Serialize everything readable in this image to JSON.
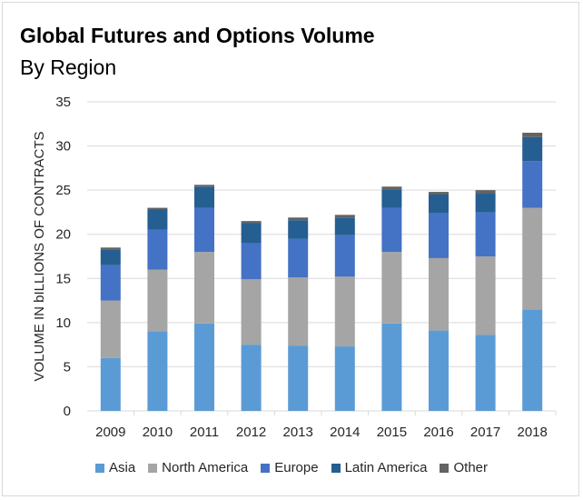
{
  "chart_data": {
    "type": "bar",
    "stacked": true,
    "title": "Global Futures and Options Volume",
    "subtitle": "By Region",
    "xlabel": "",
    "ylabel": "VOLUME IN bILLIONS OF CONTRACTS",
    "ylim": [
      0,
      35
    ],
    "yticks": [
      0,
      5,
      10,
      15,
      20,
      25,
      30,
      35
    ],
    "grid": true,
    "legend_position": "bottom",
    "categories": [
      "2009",
      "2010",
      "2011",
      "2012",
      "2013",
      "2014",
      "2015",
      "2016",
      "2017",
      "2018"
    ],
    "series": [
      {
        "name": "Asia",
        "color": "#5b9bd5",
        "values": [
          6.0,
          9.0,
          9.9,
          7.5,
          7.4,
          7.3,
          9.9,
          9.1,
          8.6,
          11.5
        ]
      },
      {
        "name": "North America",
        "color": "#a5a5a5",
        "values": [
          6.5,
          7.0,
          8.1,
          7.4,
          7.7,
          7.9,
          8.1,
          8.2,
          8.9,
          11.5
        ]
      },
      {
        "name": "Europe",
        "color": "#4472c4",
        "values": [
          4.0,
          4.5,
          5.0,
          4.1,
          4.4,
          4.7,
          5.0,
          5.1,
          5.0,
          5.3
        ]
      },
      {
        "name": "Latin America",
        "color": "#255e91",
        "values": [
          1.8,
          2.3,
          2.4,
          2.3,
          2.1,
          2.0,
          2.1,
          2.1,
          2.1,
          2.7
        ]
      },
      {
        "name": "Other",
        "color": "#636363",
        "values": [
          0.2,
          0.2,
          0.2,
          0.2,
          0.3,
          0.3,
          0.3,
          0.3,
          0.4,
          0.5
        ]
      }
    ]
  }
}
